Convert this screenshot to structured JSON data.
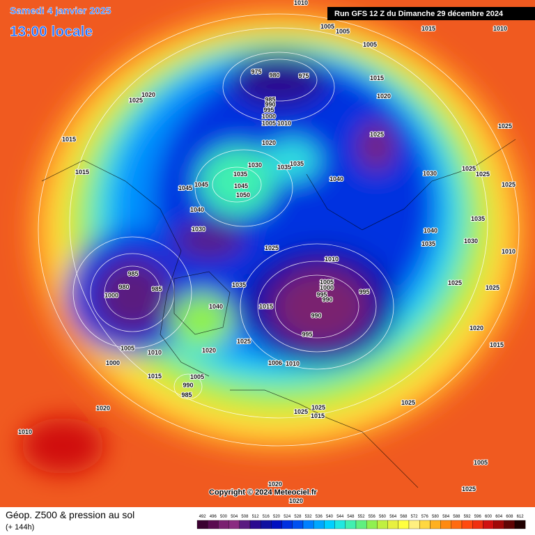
{
  "header": {
    "date": "Samedi 4 janvier 2025",
    "time": "13:00 locale",
    "run": "Run GFS 12 Z du Dimanche 29 décembre 2024"
  },
  "copyright": "Copyright © 2024 Meteociel.fr",
  "footer": {
    "title": "Géop. Z500 & pression au sol",
    "lead": "(+ 144h)"
  },
  "colorbar": {
    "ticks": [
      492,
      496,
      500,
      504,
      508,
      512,
      516,
      520,
      524,
      528,
      532,
      536,
      540,
      544,
      548,
      552,
      556,
      560,
      564,
      568,
      572,
      576,
      580,
      584,
      588,
      592,
      596,
      600,
      604,
      608,
      612
    ],
    "colors": [
      "#3a0030",
      "#5a0a50",
      "#7a2070",
      "#8a2a80",
      "#5a1a80",
      "#2a0a90",
      "#1010a0",
      "#0010c0",
      "#0030e0",
      "#0050f0",
      "#0080ff",
      "#00a8ff",
      "#00d0ff",
      "#20e8e0",
      "#40f0b0",
      "#60f080",
      "#90f050",
      "#c0f040",
      "#e8f040",
      "#ffff40",
      "#fff080",
      "#ffd840",
      "#ffb020",
      "#ff8a10",
      "#ff6a10",
      "#ff4a10",
      "#f03010",
      "#d01010",
      "#a00808",
      "#600404",
      "#200000"
    ]
  },
  "isobar_labels": [
    1010,
    1005,
    1005,
    1015,
    1010,
    1005,
    975,
    980,
    975,
    1015,
    1020,
    1020,
    1025,
    985,
    990,
    995,
    1000,
    1005,
    1010,
    1025,
    1025,
    1015,
    1020,
    1030,
    1035,
    1035,
    1030,
    1025,
    1025,
    1015,
    1040,
    1045,
    1045,
    1035,
    1045,
    1050,
    1025,
    1040,
    1035,
    1030,
    1040,
    1030,
    1035,
    1025,
    1010,
    1010,
    985,
    1025,
    1005,
    1000,
    995,
    990,
    995,
    980,
    985,
    1000,
    1035,
    1015,
    1040,
    990,
    1020,
    995,
    1025,
    1005,
    1010,
    1015,
    1020,
    1000,
    1006,
    1010,
    1015,
    1005,
    990,
    985,
    1025,
    1020,
    1025,
    1025,
    1015,
    1010,
    1005,
    1025,
    1020,
    1020,
    1025
  ]
}
